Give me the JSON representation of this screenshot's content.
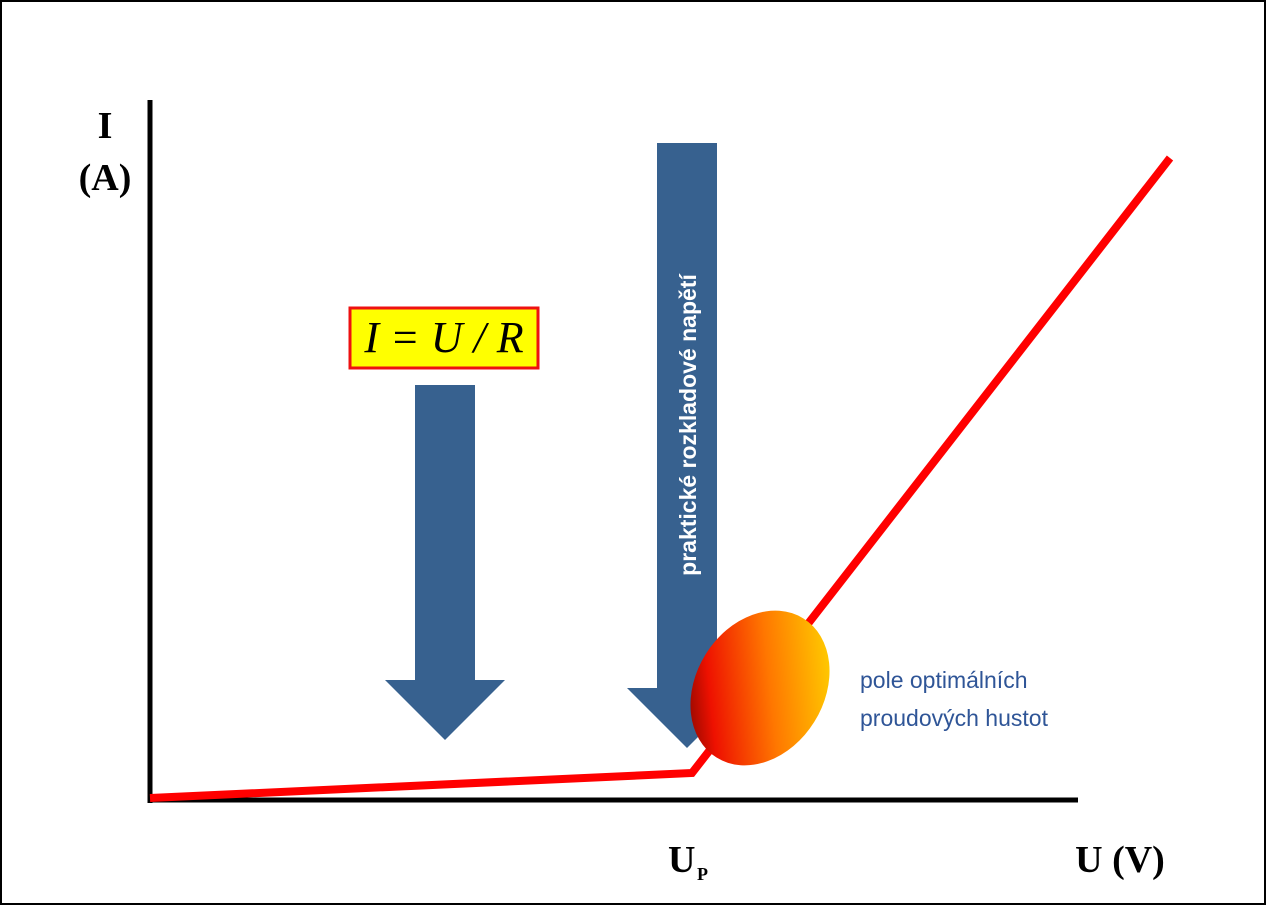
{
  "axes": {
    "y_label_symbol": "I",
    "y_label_unit": "(A)",
    "x_label": "U (V)",
    "x_mark": "U",
    "x_mark_subscript": "P"
  },
  "formula": "I = U / R",
  "arrow_label": "praktické rozkladové napětí",
  "region_label": {
    "line1": "pole optimálních",
    "line2": "proudových hustot"
  }
}
